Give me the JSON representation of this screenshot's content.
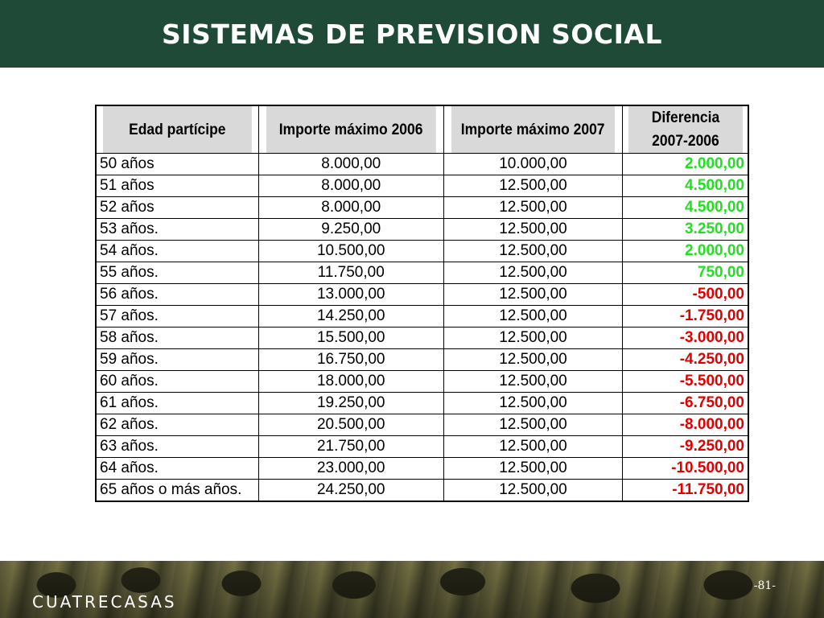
{
  "header": {
    "title": "SISTEMAS DE PREVISION SOCIAL"
  },
  "table": {
    "headers": [
      "Edad partícipe",
      "Importe máximo 2006",
      "Importe máximo 2007",
      "Diferencia",
      "2007-2006"
    ],
    "rows": [
      [
        "50 años",
        "8.000,00",
        "10.000,00",
        "2.000,00"
      ],
      [
        "51 años",
        "8.000,00",
        "12.500,00",
        "4.500,00"
      ],
      [
        "52 años",
        "8.000,00",
        "12.500,00",
        "4.500,00"
      ],
      [
        "53 años.",
        "9.250,00",
        "12.500,00",
        "3.250,00"
      ],
      [
        "54 años.",
        "10.500,00",
        "12.500,00",
        "2.000,00"
      ],
      [
        "55 años.",
        "11.750,00",
        "12.500,00",
        "750,00"
      ],
      [
        "56 años.",
        "13.000,00",
        "12.500,00",
        "-500,00"
      ],
      [
        "57 años.",
        "14.250,00",
        "12.500,00",
        "-1.750,00"
      ],
      [
        "58 años.",
        "15.500,00",
        "12.500,00",
        "-3.000,00"
      ],
      [
        "59 años.",
        "16.750,00",
        "12.500,00",
        "-4.250,00"
      ],
      [
        "60 años.",
        "18.000,00",
        "12.500,00",
        "-5.500,00"
      ],
      [
        "61 años.",
        "19.250,00",
        "12.500,00",
        "-6.750,00"
      ],
      [
        "62 años.",
        "20.500,00",
        "12.500,00",
        "-8.000,00"
      ],
      [
        "63 años.",
        "21.750,00",
        "12.500,00",
        "-9.250,00"
      ],
      [
        "64 años.",
        "23.000,00",
        "12.500,00",
        "-10.500,00"
      ],
      [
        "65 años o más años.",
        "24.250,00",
        "12.500,00",
        "-11.750,00"
      ]
    ]
  },
  "footer": {
    "brand": "CUATRECASAS",
    "page": "-81-"
  },
  "colors": {
    "header_bg": "#1f4a38",
    "positive": "#21e021",
    "negative": "#e00000"
  }
}
